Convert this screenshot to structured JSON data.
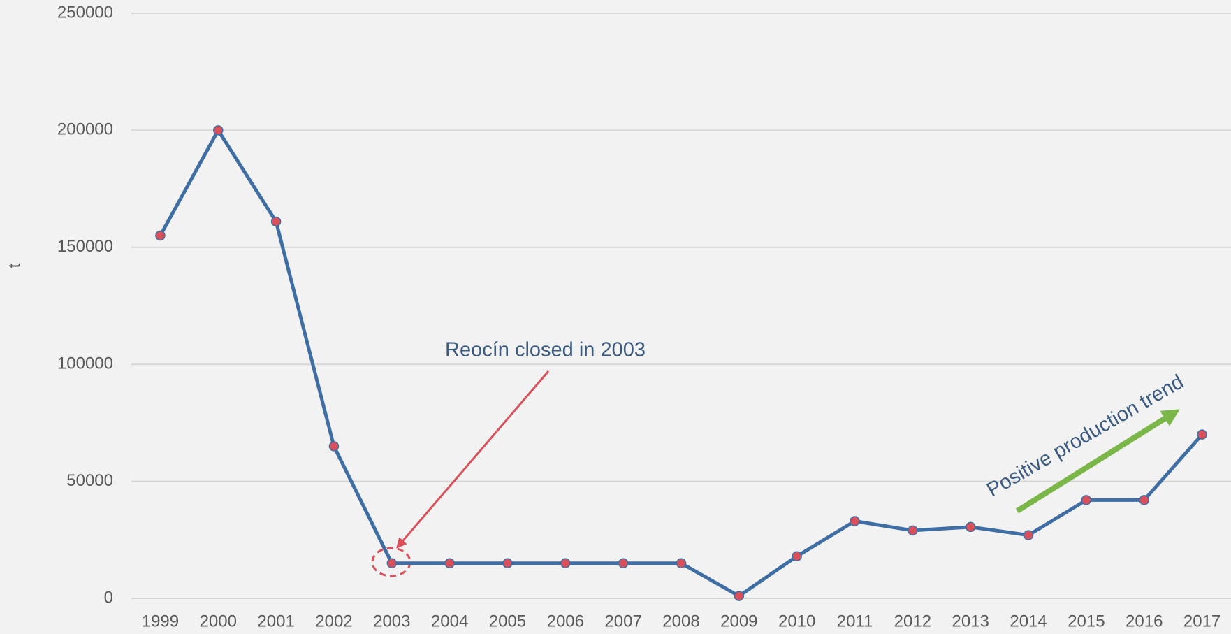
{
  "chart_data": {
    "type": "line",
    "y_label": "t",
    "categories": [
      "1999",
      "2000",
      "2001",
      "2002",
      "2003",
      "2004",
      "2005",
      "2006",
      "2007",
      "2008",
      "2009",
      "2010",
      "2011",
      "2012",
      "2013",
      "2014",
      "2015",
      "2016",
      "2017"
    ],
    "series": [
      {
        "color": "#3f6ea5",
        "marker_color": "#d9505a",
        "values": [
          155000,
          200000,
          161000,
          65000,
          15000,
          15000,
          15000,
          15000,
          15000,
          15000,
          1000,
          18000,
          33000,
          29000,
          30500,
          27000,
          42000,
          42000,
          70000
        ]
      }
    ],
    "ylim": [
      0,
      250000
    ],
    "yticks": [
      0,
      50000,
      100000,
      150000,
      200000,
      250000
    ],
    "grid": true,
    "annotations": [
      "Reocín closed in 2003",
      "Positive production trend"
    ]
  }
}
